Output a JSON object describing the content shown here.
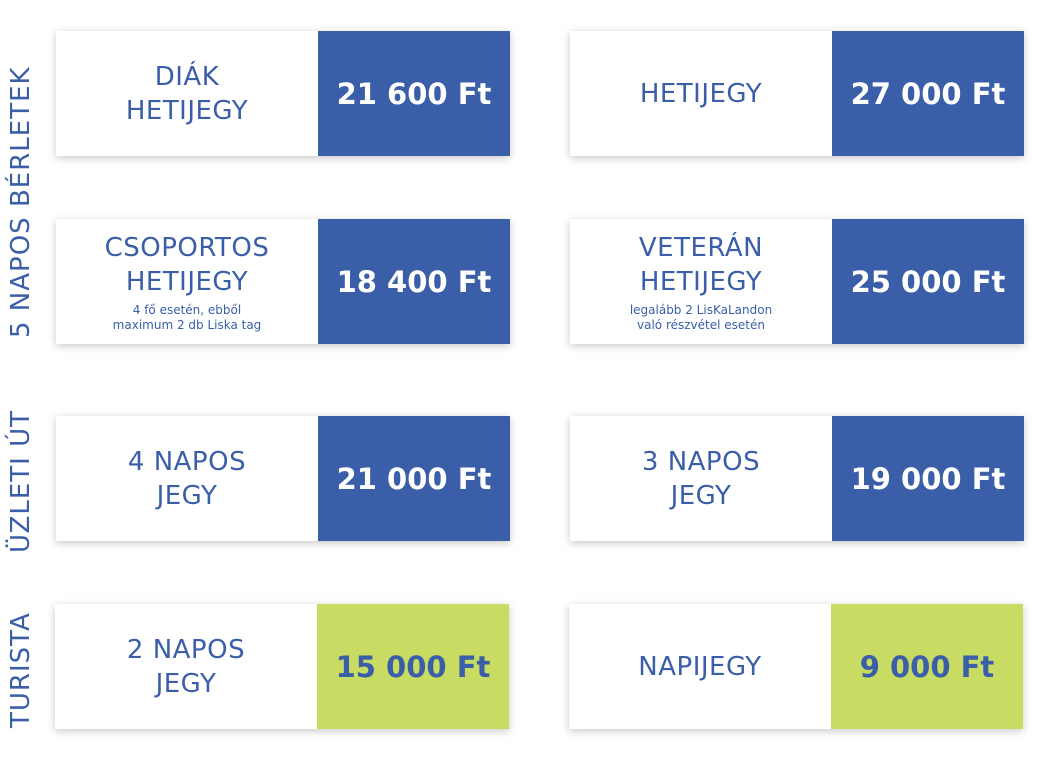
{
  "sections": {
    "weekly": "5 NAPOS BÉRLETEK",
    "business": "ÜZLETI ÚT",
    "tourist": "TURISTA"
  },
  "tickets": [
    {
      "title": "DIÁK\nHETIJEGY",
      "note": "",
      "price": "21 600 Ft"
    },
    {
      "title": "HETIJEGY",
      "note": "",
      "price": "27 000 Ft"
    },
    {
      "title": "CSOPORTOS\nHETIJEGY",
      "note": "4 fő esetén, ebből\nmaximum 2 db Liska tag",
      "price": "18 400 Ft"
    },
    {
      "title": "VETERÁN\nHETIJEGY",
      "note": "legalább 2 LisKaLandon\nvaló részvétel esetén",
      "price": "25 000 Ft"
    },
    {
      "title": "4 NAPOS\nJEGY",
      "note": "",
      "price": "21 000 Ft"
    },
    {
      "title": "3 NAPOS\nJEGY",
      "note": "",
      "price": "19 000 Ft"
    },
    {
      "title": "2 NAPOS\nJEGY",
      "note": "",
      "price": "15 000 Ft"
    },
    {
      "title": "NAPIJEGY",
      "note": "",
      "price": "9 000 Ft"
    }
  ],
  "colors": {
    "blue": "#3a5ea8",
    "green": "#c8db62"
  }
}
